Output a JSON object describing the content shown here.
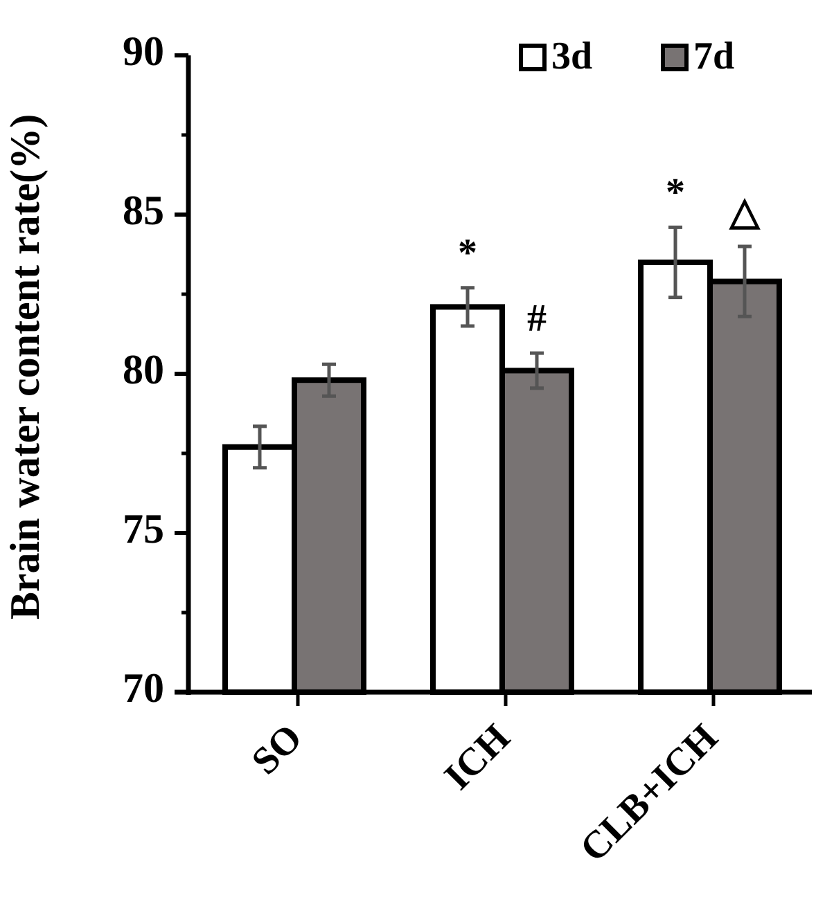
{
  "chart_data": {
    "type": "bar",
    "y_label": "Brain water content rate(%)",
    "categories": [
      "SO",
      "ICH",
      "CLB+ICH"
    ],
    "series": [
      {
        "name": "3d",
        "color": "#ffffff",
        "values": [
          77.7,
          82.1,
          83.5
        ],
        "errors": [
          0.65,
          0.6,
          1.1
        ],
        "annotations": [
          null,
          "*",
          "*"
        ]
      },
      {
        "name": "7d",
        "color": "#787373",
        "values": [
          79.8,
          80.1,
          82.9
        ],
        "errors": [
          0.5,
          0.55,
          1.1
        ],
        "annotations": [
          null,
          "#",
          "△"
        ]
      }
    ],
    "ylim": [
      70,
      90
    ],
    "yticks": [
      70,
      75,
      80,
      85,
      90
    ],
    "yminorticks": [
      72.5,
      77.5,
      82.5,
      87.5
    ],
    "legend": "top-right"
  }
}
